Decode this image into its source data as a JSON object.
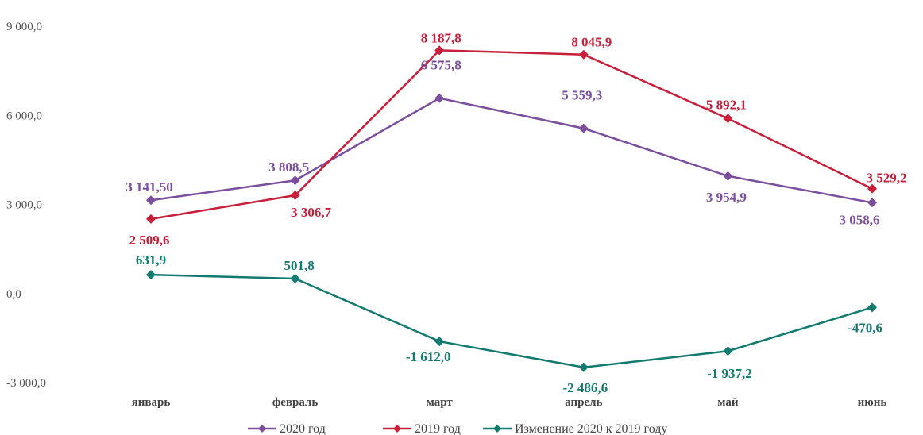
{
  "chart_data": {
    "type": "line",
    "categories": [
      "январь",
      "февраль",
      "март",
      "апрель",
      "май",
      "июнь"
    ],
    "ylim": [
      -3000,
      9000
    ],
    "yticks": [
      "9 000,0",
      "6 000,0",
      "3 000,0",
      "0,0",
      "-3 000,0"
    ],
    "ytick_values": [
      9000,
      6000,
      3000,
      0,
      -3000
    ],
    "grid": false,
    "legend_position": "bottom",
    "series": [
      {
        "name": "2020 год",
        "color": "#7b4f9e",
        "values": [
          3141.5,
          3808.5,
          6575.8,
          5559.3,
          3954.9,
          3058.6
        ],
        "labels": [
          "3 141,50",
          "3 808,5",
          "6 575,8",
          "5 559,3",
          "3 954,9",
          "3 058,6"
        ]
      },
      {
        "name": "2019 год",
        "color": "#c8203a",
        "values": [
          2509.6,
          3306.7,
          8187.8,
          8045.9,
          5892.1,
          3529.2
        ],
        "labels": [
          "2 509,6",
          "3 306,7",
          "8 187,8",
          "8 045,9",
          "5 892,1",
          "3 529,2"
        ]
      },
      {
        "name": "Изменение 2020 к 2019 году",
        "color": "#127a6e",
        "values": [
          631.9,
          501.8,
          -1612.0,
          -2486.6,
          -1937.2,
          -470.6
        ],
        "labels": [
          "631,9",
          "501,8",
          "-1 612,0",
          "-2 486,6",
          "-1 937,2",
          "-470,6"
        ]
      }
    ]
  }
}
